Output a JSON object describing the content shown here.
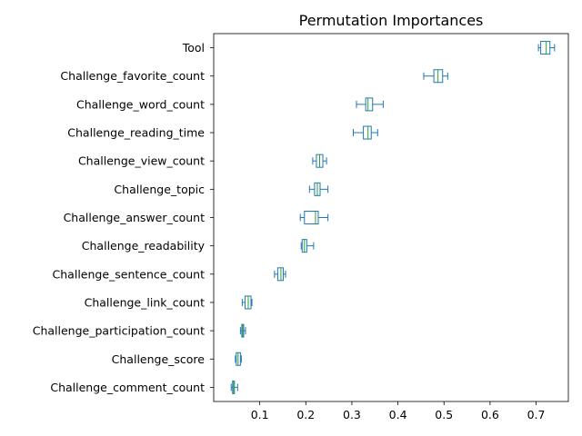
{
  "chart_data": {
    "type": "boxplot",
    "orientation": "horizontal",
    "title": "Permutation Importances",
    "xlabel": "",
    "ylabel": "",
    "xlim": [
      0.0,
      0.77
    ],
    "xticks": [
      0.1,
      0.2,
      0.3,
      0.4,
      0.5,
      0.6,
      0.7
    ],
    "xtick_labels": [
      "0.1",
      "0.2",
      "0.3",
      "0.4",
      "0.5",
      "0.6",
      "0.7"
    ],
    "grid": false,
    "colors": {
      "box": "#1f77b4",
      "median": "#2ca02c"
    },
    "categories": [
      "Tool",
      "Challenge_favorite_count",
      "Challenge_word_count",
      "Challenge_reading_time",
      "Challenge_view_count",
      "Challenge_topic",
      "Challenge_answer_count",
      "Challenge_readability",
      "Challenge_sentence_count",
      "Challenge_link_count",
      "Challenge_participation_count",
      "Challenge_score",
      "Challenge_comment_count"
    ],
    "boxes": [
      {
        "whislo": 0.705,
        "q1": 0.71,
        "med": 0.722,
        "q3": 0.73,
        "whishi": 0.74
      },
      {
        "whislo": 0.456,
        "q1": 0.478,
        "med": 0.487,
        "q3": 0.497,
        "whishi": 0.508
      },
      {
        "whislo": 0.31,
        "q1": 0.33,
        "med": 0.335,
        "q3": 0.345,
        "whishi": 0.368
      },
      {
        "whislo": 0.303,
        "q1": 0.325,
        "med": 0.335,
        "q3": 0.342,
        "whishi": 0.356
      },
      {
        "whislo": 0.215,
        "q1": 0.223,
        "med": 0.23,
        "q3": 0.237,
        "whishi": 0.245
      },
      {
        "whislo": 0.208,
        "q1": 0.219,
        "med": 0.225,
        "q3": 0.231,
        "whishi": 0.248
      },
      {
        "whislo": 0.188,
        "q1": 0.197,
        "med": 0.221,
        "q3": 0.227,
        "whishi": 0.248
      },
      {
        "whislo": 0.19,
        "q1": 0.192,
        "med": 0.197,
        "q3": 0.202,
        "whishi": 0.217
      },
      {
        "whislo": 0.132,
        "q1": 0.139,
        "med": 0.146,
        "q3": 0.151,
        "whishi": 0.156
      },
      {
        "whislo": 0.062,
        "q1": 0.068,
        "med": 0.075,
        "q3": 0.081,
        "whishi": 0.083
      },
      {
        "whislo": 0.058,
        "q1": 0.061,
        "med": 0.063,
        "q3": 0.065,
        "whishi": 0.069
      },
      {
        "whislo": 0.047,
        "q1": 0.049,
        "med": 0.053,
        "q3": 0.058,
        "whishi": 0.06
      },
      {
        "whislo": 0.038,
        "q1": 0.041,
        "med": 0.043,
        "q3": 0.045,
        "whishi": 0.052
      }
    ]
  }
}
